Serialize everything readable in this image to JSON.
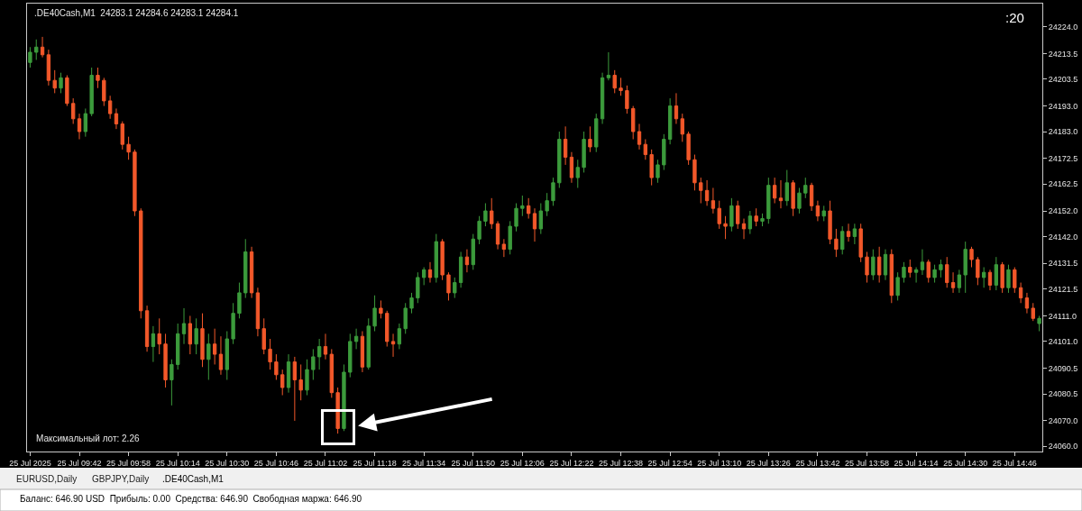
{
  "chart_data": {
    "type": "candlestick",
    "title": ".DE40Cash,M1  24283.1 24284.6 24283.1 24284.1",
    "annotations": [
      ":20",
      "Максимальный лот: 2.26",
      "EURUSD,Daily",
      "GBPJPY,Daily",
      ".DE40Cash,M1",
      "Баланс: 646.90 USD  Прибыль: 0.00  Средства: 646.90  Свободная маржа: 646.90"
    ],
    "categories": [
      "25 Jul 2025",
      null,
      null,
      null,
      null,
      null,
      null,
      null,
      "25 Jul 09:42",
      null,
      null,
      null,
      null,
      null,
      null,
      null,
      "25 Jul 09:58",
      null,
      null,
      null,
      null,
      null,
      null,
      null,
      "25 Jul 10:14",
      null,
      null,
      null,
      null,
      null,
      null,
      null,
      "25 Jul 10:30",
      null,
      null,
      null,
      null,
      null,
      null,
      null,
      "25 Jul 10:46",
      null,
      null,
      null,
      null,
      null,
      null,
      null,
      "25 Jul 11:02",
      null,
      null,
      null,
      null,
      null,
      null,
      null,
      "25 Jul 11:18",
      null,
      null,
      null,
      null,
      null,
      null,
      null,
      "25 Jul 11:34",
      null,
      null,
      null,
      null,
      null,
      null,
      null,
      "25 Jul 11:50",
      null,
      null,
      null,
      null,
      null,
      null,
      null,
      "25 Jul 12:06",
      null,
      null,
      null,
      null,
      null,
      null,
      null,
      "25 Jul 12:22",
      null,
      null,
      null,
      null,
      null,
      null,
      null,
      "25 Jul 12:38",
      null,
      null,
      null,
      null,
      null,
      null,
      null,
      "25 Jul 12:54",
      null,
      null,
      null,
      null,
      null,
      null,
      null,
      "25 Jul 13:10",
      null,
      null,
      null,
      null,
      null,
      null,
      null,
      "25 Jul 13:26",
      null,
      null,
      null,
      null,
      null,
      null,
      null,
      "25 Jul 13:42",
      null,
      null,
      null,
      null,
      null,
      null,
      null,
      "25 Jul 13:58",
      null,
      null,
      null,
      null,
      null,
      null,
      null,
      "25 Jul 14:14",
      null,
      null,
      null,
      null,
      null,
      null,
      null,
      "25 Jul 14:30",
      null,
      null,
      null,
      null,
      null,
      null,
      null,
      "25 Jul 14:46",
      null,
      null,
      null,
      null
    ],
    "ohlc": [
      [
        24210,
        24216,
        24208,
        24214
      ],
      [
        24214,
        24219,
        24211,
        24216
      ],
      [
        24216,
        24220,
        24212,
        24213
      ],
      [
        24213,
        24215,
        24201,
        24203
      ],
      [
        24203,
        24207,
        24198,
        24200
      ],
      [
        24200,
        24206,
        24198,
        24204
      ],
      [
        24204,
        24205,
        24193,
        24194
      ],
      [
        24194,
        24196,
        24186,
        24188
      ],
      [
        24188,
        24190,
        24180,
        24183
      ],
      [
        24183,
        24192,
        24181,
        24190
      ],
      [
        24190,
        24208,
        24189,
        24205
      ],
      [
        24205,
        24208,
        24200,
        24203
      ],
      [
        24203,
        24204,
        24193,
        24195
      ],
      [
        24195,
        24197,
        24188,
        24190
      ],
      [
        24190,
        24192,
        24184,
        24186
      ],
      [
        24186,
        24187,
        24176,
        24178
      ],
      [
        24178,
        24181,
        24172,
        24175
      ],
      [
        24175,
        24176,
        24150,
        24152
      ],
      [
        24152,
        24153,
        24110,
        24113
      ],
      [
        24113,
        24115,
        24097,
        24099
      ],
      [
        24099,
        24107,
        24093,
        24104
      ],
      [
        24104,
        24110,
        24096,
        24100
      ],
      [
        24100,
        24104,
        24083,
        24086
      ],
      [
        24086,
        24094,
        24076,
        24092
      ],
      [
        24092,
        24108,
        24090,
        24104
      ],
      [
        24104,
        24114,
        24100,
        24108
      ],
      [
        24108,
        24111,
        24096,
        24100
      ],
      [
        24100,
        24110,
        24096,
        24106
      ],
      [
        24106,
        24112,
        24091,
        24094
      ],
      [
        24094,
        24104,
        24086,
        24100
      ],
      [
        24100,
        24106,
        24092,
        24096
      ],
      [
        24096,
        24103,
        24088,
        24090
      ],
      [
        24090,
        24105,
        24086,
        24102
      ],
      [
        24102,
        24116,
        24100,
        24112
      ],
      [
        24112,
        24124,
        24110,
        24120
      ],
      [
        24120,
        24141,
        24118,
        24136
      ],
      [
        24136,
        24138,
        24118,
        24120
      ],
      [
        24120,
        24122,
        24103,
        24106
      ],
      [
        24106,
        24110,
        24096,
        24098
      ],
      [
        24098,
        24102,
        24090,
        24093
      ],
      [
        24093,
        24096,
        24086,
        24088
      ],
      [
        24088,
        24090,
        24080,
        24083
      ],
      [
        24083,
        24096,
        24081,
        24093
      ],
      [
        24093,
        24095,
        24070,
        24086
      ],
      [
        24086,
        24092,
        24078,
        24082
      ],
      [
        24082,
        24094,
        24080,
        24090
      ],
      [
        24090,
        24098,
        24086,
        24095
      ],
      [
        24095,
        24102,
        24090,
        24099
      ],
      [
        24099,
        24104,
        24094,
        24096
      ],
      [
        24096,
        24098,
        24079,
        24081
      ],
      [
        24081,
        24083,
        24065,
        24067
      ],
      [
        24067,
        24092,
        24066,
        24089
      ],
      [
        24089,
        24104,
        24087,
        24101
      ],
      [
        24101,
        24106,
        24098,
        24103
      ],
      [
        24103,
        24105,
        24089,
        24091
      ],
      [
        24091,
        24110,
        24090,
        24107
      ],
      [
        24107,
        24119,
        24105,
        24114
      ],
      [
        24114,
        24117,
        24110,
        24112
      ],
      [
        24112,
        24113,
        24099,
        24101
      ],
      [
        24101,
        24104,
        24095,
        24100
      ],
      [
        24100,
        24108,
        24098,
        24106
      ],
      [
        24106,
        24116,
        24104,
        24114
      ],
      [
        24114,
        24120,
        24112,
        24118
      ],
      [
        24118,
        24128,
        24116,
        24126
      ],
      [
        24126,
        24130,
        24123,
        24129
      ],
      [
        24129,
        24132,
        24124,
        24126
      ],
      [
        24126,
        24143,
        24124,
        24140
      ],
      [
        24140,
        24141,
        24125,
        24127
      ],
      [
        24127,
        24128,
        24117,
        24120
      ],
      [
        24120,
        24126,
        24118,
        24124
      ],
      [
        24124,
        24136,
        24122,
        24134
      ],
      [
        24134,
        24137,
        24128,
        24131
      ],
      [
        24131,
        24143,
        24129,
        24141
      ],
      [
        24141,
        24150,
        24139,
        24148
      ],
      [
        24148,
        24155,
        24146,
        24152
      ],
      [
        24152,
        24157,
        24145,
        24147
      ],
      [
        24147,
        24148,
        24137,
        24139
      ],
      [
        24139,
        24141,
        24134,
        24137
      ],
      [
        24137,
        24148,
        24135,
        24146
      ],
      [
        24146,
        24155,
        24144,
        24153
      ],
      [
        24153,
        24158,
        24150,
        24154
      ],
      [
        24154,
        24157,
        24149,
        24151
      ],
      [
        24151,
        24153,
        24140,
        24145
      ],
      [
        24145,
        24155,
        24143,
        24152
      ],
      [
        24152,
        24159,
        24150,
        24156
      ],
      [
        24156,
        24165,
        24154,
        24163
      ],
      [
        24163,
        24183,
        24161,
        24180
      ],
      [
        24180,
        24185,
        24170,
        24173
      ],
      [
        24173,
        24175,
        24163,
        24165
      ],
      [
        24165,
        24172,
        24161,
        24169
      ],
      [
        24169,
        24183,
        24167,
        24180
      ],
      [
        24180,
        24185,
        24175,
        24177
      ],
      [
        24177,
        24190,
        24175,
        24188
      ],
      [
        24188,
        24206,
        24186,
        24204
      ],
      [
        24204,
        24214,
        24203,
        24205
      ],
      [
        24205,
        24207,
        24198,
        24200
      ],
      [
        24200,
        24204,
        24197,
        24199
      ],
      [
        24199,
        24201,
        24190,
        24192
      ],
      [
        24192,
        24193,
        24180,
        24183
      ],
      [
        24183,
        24186,
        24176,
        24178
      ],
      [
        24178,
        24180,
        24172,
        24174
      ],
      [
        24174,
        24176,
        24162,
        24165
      ],
      [
        24165,
        24172,
        24163,
        24170
      ],
      [
        24170,
        24182,
        24168,
        24180
      ],
      [
        24180,
        24196,
        24178,
        24193
      ],
      [
        24193,
        24198,
        24186,
        24188
      ],
      [
        24188,
        24190,
        24179,
        24182
      ],
      [
        24182,
        24183,
        24170,
        24172
      ],
      [
        24172,
        24174,
        24160,
        24163
      ],
      [
        24163,
        24165,
        24155,
        24160
      ],
      [
        24160,
        24164,
        24154,
        24156
      ],
      [
        24156,
        24161,
        24151,
        24153
      ],
      [
        24153,
        24156,
        24145,
        24147
      ],
      [
        24147,
        24150,
        24141,
        24146
      ],
      [
        24146,
        24157,
        24144,
        24154
      ],
      [
        24154,
        24156,
        24145,
        24147
      ],
      [
        24147,
        24149,
        24141,
        24145
      ],
      [
        24145,
        24152,
        24143,
        24150
      ],
      [
        24150,
        24153,
        24146,
        24148
      ],
      [
        24148,
        24151,
        24146,
        24149
      ],
      [
        24149,
        24165,
        24147,
        24162
      ],
      [
        24162,
        24165,
        24155,
        24157
      ],
      [
        24157,
        24164,
        24153,
        24156
      ],
      [
        24156,
        24168,
        24154,
        24163
      ],
      [
        24163,
        24164,
        24150,
        24153
      ],
      [
        24153,
        24161,
        24151,
        24159
      ],
      [
        24159,
        24165,
        24157,
        24162
      ],
      [
        24162,
        24163,
        24152,
        24154
      ],
      [
        24154,
        24156,
        24148,
        24150
      ],
      [
        24150,
        24154,
        24148,
        24152
      ],
      [
        24152,
        24156,
        24139,
        24141
      ],
      [
        24141,
        24145,
        24134,
        24137
      ],
      [
        24137,
        24146,
        24135,
        24144
      ],
      [
        24144,
        24147,
        24140,
        24142
      ],
      [
        24142,
        24147,
        24139,
        24145
      ],
      [
        24145,
        24147,
        24132,
        24134
      ],
      [
        24134,
        24136,
        24124,
        24127
      ],
      [
        24127,
        24137,
        24125,
        24134
      ],
      [
        24134,
        24138,
        24124,
        24127
      ],
      [
        24127,
        24137,
        24125,
        24135
      ],
      [
        24135,
        24137,
        24116,
        24119
      ],
      [
        24119,
        24128,
        24117,
        24126
      ],
      [
        24126,
        24132,
        24124,
        24130
      ],
      [
        24130,
        24133,
        24126,
        24128
      ],
      [
        24128,
        24130,
        24124,
        24129
      ],
      [
        24129,
        24137,
        24127,
        24132
      ],
      [
        24132,
        24133,
        24124,
        24126
      ],
      [
        24126,
        24131,
        24124,
        24129
      ],
      [
        24129,
        24133,
        24126,
        24131
      ],
      [
        24131,
        24134,
        24122,
        24124
      ],
      [
        24124,
        24128,
        24120,
        24122
      ],
      [
        24122,
        24129,
        24120,
        24127
      ],
      [
        24127,
        24140,
        24120,
        24137
      ],
      [
        24137,
        24138,
        24130,
        24133
      ],
      [
        24133,
        24134,
        24123,
        24126
      ],
      [
        24126,
        24130,
        24122,
        24128
      ],
      [
        24128,
        24129,
        24121,
        24123
      ],
      [
        24123,
        24134,
        24121,
        24131
      ],
      [
        24131,
        24132,
        24120,
        24122
      ],
      [
        24122,
        24131,
        24120,
        24129
      ],
      [
        24129,
        24130,
        24120,
        24122
      ],
      [
        24122,
        24124,
        24116,
        24118
      ],
      [
        24118,
        24120,
        24112,
        24114
      ],
      [
        24114,
        24116,
        24109,
        24110
      ],
      [
        24108,
        24111,
        24105,
        24110
      ]
    ],
    "colors": [
      "#3c9b3c",
      "#3c9b3c",
      "#f2582a",
      "#f2582a",
      "#f2582a",
      "#3c9b3c",
      "#f2582a",
      "#f2582a",
      "#f2582a",
      "#3c9b3c",
      "#3c9b3c",
      "#f2582a",
      "#f2582a",
      "#f2582a",
      "#f2582a",
      "#f2582a",
      "#f2582a",
      "#f2582a",
      "#f2582a",
      "#f2582a",
      "#3c9b3c",
      "#f2582a",
      "#f2582a",
      "#3c9b3c",
      "#3c9b3c",
      "#3c9b3c",
      "#f2582a",
      "#3c9b3c",
      "#f2582a",
      "#3c9b3c",
      "#f2582a",
      "#f2582a",
      "#3c9b3c",
      "#3c9b3c",
      "#3c9b3c",
      "#3c9b3c",
      "#f2582a",
      "#f2582a",
      "#f2582a",
      "#f2582a",
      "#f2582a",
      "#f2582a",
      "#3c9b3c",
      "#f2582a",
      "#f2582a",
      "#3c9b3c",
      "#3c9b3c",
      "#3c9b3c",
      "#f2582a",
      "#f2582a",
      "#f2582a",
      "#3c9b3c",
      "#3c9b3c",
      "#3c9b3c",
      "#f2582a",
      "#3c9b3c",
      "#3c9b3c",
      "#f2582a",
      "#f2582a",
      "#f2582a",
      "#3c9b3c",
      "#3c9b3c",
      "#3c9b3c",
      "#3c9b3c",
      "#3c9b3c",
      "#f2582a",
      "#3c9b3c",
      "#f2582a",
      "#f2582a",
      "#3c9b3c",
      "#3c9b3c",
      "#f2582a",
      "#3c9b3c",
      "#3c9b3c",
      "#3c9b3c",
      "#f2582a",
      "#f2582a",
      "#f2582a",
      "#3c9b3c",
      "#3c9b3c",
      "#3c9b3c",
      "#f2582a",
      "#f2582a",
      "#3c9b3c",
      "#3c9b3c",
      "#3c9b3c",
      "#3c9b3c",
      "#f2582a",
      "#f2582a",
      "#3c9b3c",
      "#3c9b3c",
      "#f2582a",
      "#3c9b3c",
      "#3c9b3c",
      "#3c9b3c",
      "#f2582a",
      "#f2582a",
      "#f2582a",
      "#f2582a",
      "#f2582a",
      "#f2582a",
      "#f2582a",
      "#3c9b3c",
      "#3c9b3c",
      "#3c9b3c",
      "#f2582a",
      "#f2582a",
      "#f2582a",
      "#f2582a",
      "#f2582a",
      "#f2582a",
      "#f2582a",
      "#f2582a",
      "#f2582a",
      "#3c9b3c",
      "#f2582a",
      "#f2582a",
      "#3c9b3c",
      "#f2582a",
      "#3c9b3c",
      "#3c9b3c",
      "#f2582a",
      "#f2582a",
      "#3c9b3c",
      "#f2582a",
      "#3c9b3c",
      "#3c9b3c",
      "#f2582a",
      "#f2582a",
      "#3c9b3c",
      "#f2582a",
      "#f2582a",
      "#3c9b3c",
      "#f2582a",
      "#3c9b3c",
      "#f2582a",
      "#f2582a",
      "#3c9b3c",
      "#f2582a",
      "#3c9b3c",
      "#f2582a",
      "#3c9b3c",
      "#3c9b3c",
      "#f2582a",
      "#3c9b3c",
      "#3c9b3c",
      "#f2582a",
      "#3c9b3c",
      "#3c9b3c",
      "#f2582a",
      "#f2582a",
      "#3c9b3c",
      "#3c9b3c",
      "#f2582a",
      "#f2582a",
      "#3c9b3c",
      "#f2582a",
      "#3c9b3c",
      "#f2582a",
      "#3c9b3c",
      "#f2582a",
      "#f2582a",
      "#f2582a",
      "#f2582a",
      "#3c9b3c"
    ],
    "ylim": [
      24058.0,
      24233.0
    ],
    "yticks": [
      {
        "value": 24224,
        "label": "24224.0"
      },
      {
        "value": 24213.5,
        "label": "24213.5"
      },
      {
        "value": 24203.5,
        "label": "24203.5"
      },
      {
        "value": 24193,
        "label": "24193.0"
      },
      {
        "value": 24183,
        "label": "24183.0"
      },
      {
        "value": 24172.5,
        "label": "24172.5"
      },
      {
        "value": 24162.5,
        "label": "24162.5"
      },
      {
        "value": 24152,
        "label": "24152.0"
      },
      {
        "value": 24142,
        "label": "24142.0"
      },
      {
        "value": 24131.5,
        "label": "24131.5"
      },
      {
        "value": 24121.5,
        "label": "24121.5"
      },
      {
        "value": 24111,
        "label": "24111.0"
      },
      {
        "value": 24101,
        "label": "24101.0"
      },
      {
        "value": 24090.5,
        "label": "24090.5"
      },
      {
        "value": 24080.5,
        "label": "24080.5"
      },
      {
        "value": 24070,
        "label": "24070.0"
      },
      {
        "value": 24060,
        "label": "24060.0"
      }
    ]
  }
}
